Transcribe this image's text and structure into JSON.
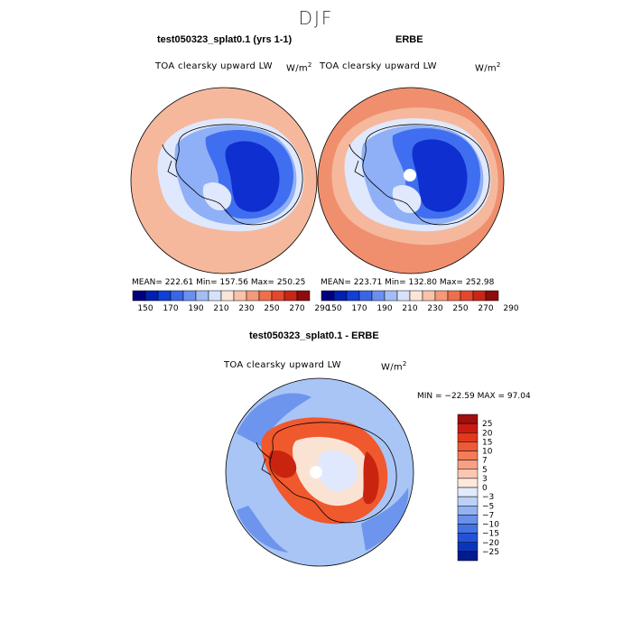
{
  "figure": {
    "title": "DJF"
  },
  "panels": [
    {
      "title": "test050323_splat0.1 (yrs 1-1)",
      "variable": "TOA clearsky upward LW",
      "units": "W/m",
      "units_exp": "2",
      "stats": "MEAN= 222.61   Min= 157.56   Max= 250.25"
    },
    {
      "title": "ERBE",
      "variable": "TOA clearsky upward LW",
      "units": "W/m",
      "units_exp": "2",
      "stats": "MEAN= 223.71   Min= 132.80   Max= 252.98"
    },
    {
      "title": "test050323_splat0.1 - ERBE",
      "variable": "TOA clearsky upward LW",
      "units": "W/m",
      "units_exp": "2",
      "stats": "MIN = −22.59  MAX =   97.04"
    }
  ],
  "colorbar_abs": {
    "orientation": "horizontal",
    "tick_labels": [
      "150",
      "170",
      "190",
      "210",
      "230",
      "250",
      "270",
      "290"
    ],
    "colors": [
      "#00007f",
      "#0020b0",
      "#1040d8",
      "#3a66e6",
      "#6b8ff0",
      "#a3bdf6",
      "#d6e2fa",
      "#fbe5d8",
      "#f8c3a8",
      "#f49a78",
      "#ef6e4c",
      "#e5472d",
      "#c92618",
      "#8f0c0c"
    ]
  },
  "colorbar_diff": {
    "orientation": "vertical",
    "tick_labels": [
      "25",
      "20",
      "15",
      "10",
      "7",
      "5",
      "3",
      "0",
      "−3",
      "−5",
      "−7",
      "−10",
      "−15",
      "−20",
      "−25"
    ],
    "colors": [
      "#a10e0e",
      "#c81c10",
      "#e2381c",
      "#ef5a36",
      "#f47c58",
      "#f7a184",
      "#fac7b2",
      "#fde8de",
      "#e2ebfb",
      "#bdd0f7",
      "#93b2f1",
      "#6a90ea",
      "#4572e2",
      "#2451d6",
      "#0b35b8",
      "#021c8f"
    ]
  },
  "map_colors": {
    "ocean_abs_model": "#f5b89c",
    "ocean_abs_obs": "#f08f6e",
    "ocean_diff": "#a9c5f5",
    "ice_deep": "#0f2fd0",
    "ice_mid": "#3f6ff0",
    "ice_light": "#8fb0f6",
    "ice_shelf": "#dfe8fc",
    "diff_warm": "#f0582e",
    "diff_hot": "#c9240f",
    "diff_neutral": "#fbe3d4",
    "diff_cool": "#6e95ee"
  }
}
